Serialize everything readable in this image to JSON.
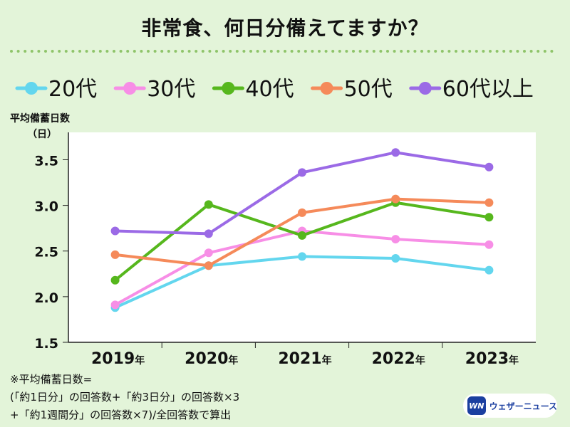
{
  "title": "非常食、何日分備えてますか？",
  "y_heading": "平均備蓄日数",
  "y_unit": "（日）",
  "footnote": {
    "line1": "※平均備蓄日数=",
    "line2": "(「約1日分」の回答数+「約3日分」の回答数×3",
    "line3": "+「約1週間分」の回答数×7)/全回答数で算出"
  },
  "logo": {
    "mark": "WN",
    "text": "ウェザーニュース"
  },
  "colors": {
    "background": "#e3f4d9",
    "plot_background": "#ffffff",
    "dots": "#8fc46a",
    "20代": "#63d6ee",
    "30代": "#f78ee6",
    "40代": "#56b71d",
    "50代": "#f58a5a",
    "60代以上": "#9b6ae6"
  },
  "chart_data": {
    "type": "line",
    "categories": [
      "2019",
      "2020",
      "2021",
      "2022",
      "2023"
    ],
    "category_suffix": "年",
    "ylim": [
      1.5,
      3.8
    ],
    "yticks": [
      1.5,
      2.0,
      2.5,
      3.0,
      3.5
    ],
    "ylabel": "平均備蓄日数（日）",
    "legend_position": "top",
    "series": [
      {
        "name": "20代",
        "values": [
          1.88,
          2.34,
          2.44,
          2.42,
          2.29
        ]
      },
      {
        "name": "30代",
        "values": [
          1.91,
          2.48,
          2.72,
          2.63,
          2.57
        ]
      },
      {
        "name": "40代",
        "values": [
          2.18,
          3.01,
          2.67,
          3.03,
          2.87
        ]
      },
      {
        "name": "50代",
        "values": [
          2.46,
          2.34,
          2.92,
          3.07,
          3.03
        ]
      },
      {
        "name": "60代以上",
        "values": [
          2.72,
          2.69,
          3.36,
          3.58,
          3.42
        ]
      }
    ]
  }
}
